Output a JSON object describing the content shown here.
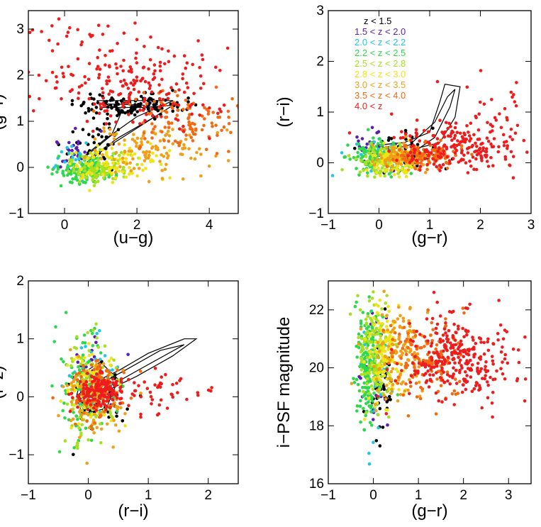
{
  "redshift_bins": [
    {
      "label": "z < 1.5",
      "color": "#000000"
    },
    {
      "label": "1.5 < z < 2.0",
      "color": "#5a1fb0"
    },
    {
      "label": "2.0 < z < 2.2",
      "color": "#1fc6e6"
    },
    {
      "label": "2.2 < z < 2.5",
      "color": "#2fd84a"
    },
    {
      "label": "2.5 < z < 2.8",
      "color": "#a8e020"
    },
    {
      "label": "2.8 < z < 3.0",
      "color": "#f0e418"
    },
    {
      "label": "3.0 < z < 3.5",
      "color": "#f0a018"
    },
    {
      "label": "3.5 < z < 4.0",
      "color": "#f26a12"
    },
    {
      "label": "4.0 < z",
      "color": "#ee1c1c"
    }
  ],
  "chart_data": [
    {
      "type": "scatter",
      "xlabel": "(u−g)",
      "ylabel": "(g−r)",
      "xlim": [
        -1,
        4.8
      ],
      "ylim": [
        -1,
        3.4
      ],
      "xticks": [
        0,
        2,
        4
      ],
      "yticks": [
        -1,
        0,
        1,
        2,
        3
      ],
      "legend": "none",
      "contours": [
        [
          [
            0.5,
            0.05
          ],
          [
            1.2,
            0.45
          ],
          [
            2.2,
            0.95
          ],
          [
            3.0,
            1.35
          ],
          [
            2.2,
            1.3
          ],
          [
            1.0,
            1.3
          ],
          [
            0.9,
            1.45
          ],
          [
            2.0,
            1.45
          ],
          [
            3.0,
            1.45
          ],
          [
            2.0,
            1.1
          ],
          [
            1.1,
            0.6
          ],
          [
            0.4,
            0.15
          ]
        ],
        [
          [
            0.7,
            0.2
          ],
          [
            1.5,
            0.65
          ],
          [
            2.5,
            1.1
          ],
          [
            2.2,
            1.35
          ],
          [
            1.1,
            1.38
          ],
          [
            1.6,
            1.25
          ],
          [
            1.3,
            0.7
          ],
          [
            0.6,
            0.25
          ]
        ]
      ],
      "series": [
        {
          "bin": 0,
          "clusters": [
            {
              "cx": 1.8,
              "cy": 1.35,
              "sx": 0.7,
              "sy": 0.12,
              "n": 120
            },
            {
              "cx": 0.8,
              "cy": 0.8,
              "sx": 0.35,
              "sy": 0.35,
              "n": 40
            }
          ]
        },
        {
          "bin": 1,
          "clusters": [
            {
              "cx": 0.2,
              "cy": 0.3,
              "sx": 0.3,
              "sy": 0.2,
              "n": 30
            }
          ]
        },
        {
          "bin": 2,
          "clusters": [
            {
              "cx": 0.3,
              "cy": 0.1,
              "sx": 0.3,
              "sy": 0.2,
              "n": 30
            }
          ]
        },
        {
          "bin": 3,
          "clusters": [
            {
              "cx": 0.6,
              "cy": -0.05,
              "sx": 0.4,
              "sy": 0.15,
              "n": 120
            }
          ]
        },
        {
          "bin": 4,
          "clusters": [
            {
              "cx": 0.9,
              "cy": 0.0,
              "sx": 0.45,
              "sy": 0.15,
              "n": 110
            }
          ]
        },
        {
          "bin": 5,
          "clusters": [
            {
              "cx": 1.4,
              "cy": 0.1,
              "sx": 0.6,
              "sy": 0.2,
              "n": 90
            }
          ]
        },
        {
          "bin": 6,
          "clusters": [
            {
              "cx": 2.3,
              "cy": 0.4,
              "sx": 0.9,
              "sy": 0.3,
              "n": 110
            }
          ]
        },
        {
          "bin": 7,
          "clusters": [
            {
              "cx": 3.3,
              "cy": 1.0,
              "sx": 0.9,
              "sy": 0.3,
              "n": 110
            }
          ]
        },
        {
          "bin": 8,
          "clusters": [
            {
              "cx": 2.0,
              "cy": 1.7,
              "sx": 1.3,
              "sy": 0.45,
              "n": 200
            },
            {
              "cx": 0.2,
              "cy": 2.9,
              "sx": 0.9,
              "sy": 0.35,
              "n": 35
            }
          ]
        }
      ]
    },
    {
      "type": "scatter",
      "xlabel": "(g−r)",
      "ylabel": "(r−i)",
      "xlim": [
        -1,
        3
      ],
      "ylim": [
        -1,
        3
      ],
      "xticks": [
        -1,
        0,
        1,
        2,
        3
      ],
      "yticks": [
        -1,
        0,
        1,
        2,
        3
      ],
      "legend": "top-left",
      "contours": [
        [
          [
            -0.2,
            0.2
          ],
          [
            0.3,
            0.1
          ],
          [
            0.8,
            0.3
          ],
          [
            1.2,
            0.4
          ],
          [
            1.5,
            0.9
          ],
          [
            1.6,
            1.5
          ],
          [
            1.3,
            1.55
          ],
          [
            1.2,
            1.2
          ],
          [
            1.0,
            0.6
          ],
          [
            0.5,
            0.4
          ],
          [
            0.0,
            0.35
          ],
          [
            -0.2,
            0.25
          ]
        ],
        [
          [
            0.1,
            0.2
          ],
          [
            0.6,
            0.15
          ],
          [
            1.1,
            0.5
          ],
          [
            1.4,
            1.1
          ],
          [
            1.5,
            1.45
          ],
          [
            1.35,
            1.3
          ],
          [
            1.1,
            0.8
          ],
          [
            0.6,
            0.35
          ],
          [
            0.2,
            0.25
          ]
        ]
      ],
      "series": [
        {
          "bin": 0,
          "clusters": [
            {
              "cx": 0.4,
              "cy": 0.2,
              "sx": 0.4,
              "sy": 0.2,
              "n": 60
            }
          ]
        },
        {
          "bin": 1,
          "clusters": [
            {
              "cx": -0.1,
              "cy": 0.25,
              "sx": 0.25,
              "sy": 0.15,
              "n": 30
            }
          ]
        },
        {
          "bin": 2,
          "clusters": [
            {
              "cx": -0.1,
              "cy": 0.15,
              "sx": 0.25,
              "sy": 0.15,
              "n": 30
            }
          ]
        },
        {
          "bin": 3,
          "clusters": [
            {
              "cx": -0.1,
              "cy": 0.1,
              "sx": 0.25,
              "sy": 0.15,
              "n": 120
            }
          ]
        },
        {
          "bin": 4,
          "clusters": [
            {
              "cx": 0.1,
              "cy": 0.05,
              "sx": 0.25,
              "sy": 0.15,
              "n": 100
            }
          ]
        },
        {
          "bin": 5,
          "clusters": [
            {
              "cx": 0.3,
              "cy": 0.05,
              "sx": 0.25,
              "sy": 0.15,
              "n": 90
            }
          ]
        },
        {
          "bin": 6,
          "clusters": [
            {
              "cx": 0.5,
              "cy": 0.1,
              "sx": 0.3,
              "sy": 0.12,
              "n": 100
            }
          ]
        },
        {
          "bin": 7,
          "clusters": [
            {
              "cx": 0.9,
              "cy": 0.15,
              "sx": 0.35,
              "sy": 0.12,
              "n": 110
            }
          ]
        },
        {
          "bin": 8,
          "clusters": [
            {
              "cx": 1.5,
              "cy": 0.3,
              "sx": 0.6,
              "sy": 0.25,
              "n": 200
            },
            {
              "cx": 2.3,
              "cy": 0.9,
              "sx": 0.4,
              "sy": 0.5,
              "n": 35
            }
          ]
        }
      ]
    },
    {
      "type": "scatter",
      "xlabel": "(r−i)",
      "ylabel": "(i−z)",
      "xlim": [
        -1,
        2.5
      ],
      "ylim": [
        -1.5,
        2
      ],
      "xticks": [
        -1,
        0,
        1,
        2
      ],
      "yticks": [
        -1,
        0,
        1,
        2
      ],
      "legend": "none",
      "contours": [
        [
          [
            -0.1,
            0.0
          ],
          [
            0.3,
            0.1
          ],
          [
            0.8,
            0.35
          ],
          [
            1.4,
            0.7
          ],
          [
            1.8,
            1.0
          ],
          [
            1.6,
            1.0
          ],
          [
            1.0,
            0.75
          ],
          [
            0.5,
            0.45
          ],
          [
            0.0,
            0.2
          ],
          [
            -0.15,
            0.05
          ]
        ],
        [
          [
            0.05,
            0.05
          ],
          [
            0.3,
            0.15
          ],
          [
            0.9,
            0.5
          ],
          [
            1.6,
            0.9
          ],
          [
            1.2,
            0.8
          ],
          [
            0.6,
            0.45
          ],
          [
            0.15,
            0.2
          ]
        ],
        [
          [
            -0.1,
            -0.3
          ],
          [
            0.3,
            -0.2
          ],
          [
            0.5,
            0.3
          ],
          [
            0.2,
            0.6
          ],
          [
            -0.1,
            0.4
          ],
          [
            -0.2,
            0.0
          ]
        ]
      ],
      "series": [
        {
          "bin": 0,
          "clusters": [
            {
              "cx": 0.2,
              "cy": 0.05,
              "sx": 0.3,
              "sy": 0.3,
              "n": 50
            }
          ]
        },
        {
          "bin": 1,
          "clusters": [
            {
              "cx": 0.05,
              "cy": 0.4,
              "sx": 0.2,
              "sy": 0.3,
              "n": 30
            }
          ]
        },
        {
          "bin": 2,
          "clusters": [
            {
              "cx": 0.05,
              "cy": 0.4,
              "sx": 0.2,
              "sy": 0.3,
              "n": 30
            }
          ]
        },
        {
          "bin": 3,
          "clusters": [
            {
              "cx": -0.05,
              "cy": 0.2,
              "sx": 0.2,
              "sy": 0.45,
              "n": 100
            }
          ]
        },
        {
          "bin": 4,
          "clusters": [
            {
              "cx": 0.0,
              "cy": 0.1,
              "sx": 0.2,
              "sy": 0.45,
              "n": 100
            }
          ]
        },
        {
          "bin": 5,
          "clusters": [
            {
              "cx": 0.05,
              "cy": 0.2,
              "sx": 0.2,
              "sy": 0.35,
              "n": 80
            }
          ]
        },
        {
          "bin": 6,
          "clusters": [
            {
              "cx": 0.1,
              "cy": 0.0,
              "sx": 0.25,
              "sy": 0.35,
              "n": 100
            }
          ]
        },
        {
          "bin": 7,
          "clusters": [
            {
              "cx": 0.15,
              "cy": 0.1,
              "sx": 0.25,
              "sy": 0.3,
              "n": 100
            }
          ]
        },
        {
          "bin": 8,
          "clusters": [
            {
              "cx": 0.2,
              "cy": 0.1,
              "sx": 0.2,
              "sy": 0.15,
              "n": 160
            },
            {
              "cx": 1.3,
              "cy": 0.1,
              "sx": 0.35,
              "sy": 0.2,
              "n": 45
            }
          ]
        }
      ]
    },
    {
      "type": "scatter",
      "xlabel": "(g−r)",
      "ylabel": "i−PSF magnitude",
      "xlim": [
        -1,
        3.5
      ],
      "ylim": [
        16,
        23
      ],
      "xticks": [
        -1,
        0,
        1,
        2,
        3
      ],
      "yticks": [
        16,
        18,
        20,
        22
      ],
      "legend": "none",
      "contours": [],
      "series": [
        {
          "bin": 0,
          "clusters": [
            {
              "cx": 0.2,
              "cy": 19.4,
              "sx": 0.15,
              "sy": 0.9,
              "n": 45
            }
          ]
        },
        {
          "bin": 1,
          "clusters": [
            {
              "cx": 0.0,
              "cy": 19.5,
              "sx": 0.15,
              "sy": 1.2,
              "n": 25
            }
          ]
        },
        {
          "bin": 2,
          "clusters": [
            {
              "cx": 0.05,
              "cy": 19.5,
              "sx": 0.15,
              "sy": 1.2,
              "n": 25
            }
          ]
        },
        {
          "bin": 3,
          "clusters": [
            {
              "cx": -0.1,
              "cy": 20.2,
              "sx": 0.18,
              "sy": 1.0,
              "n": 180
            }
          ]
        },
        {
          "bin": 4,
          "clusters": [
            {
              "cx": 0.05,
              "cy": 20.4,
              "sx": 0.18,
              "sy": 0.9,
              "n": 150
            }
          ]
        },
        {
          "bin": 5,
          "clusters": [
            {
              "cx": 0.25,
              "cy": 20.5,
              "sx": 0.2,
              "sy": 0.8,
              "n": 120
            }
          ]
        },
        {
          "bin": 6,
          "clusters": [
            {
              "cx": 0.55,
              "cy": 20.5,
              "sx": 0.3,
              "sy": 0.8,
              "n": 130
            }
          ]
        },
        {
          "bin": 7,
          "clusters": [
            {
              "cx": 1.1,
              "cy": 20.4,
              "sx": 0.45,
              "sy": 0.8,
              "n": 130
            }
          ]
        },
        {
          "bin": 8,
          "clusters": [
            {
              "cx": 1.9,
              "cy": 20.3,
              "sx": 0.6,
              "sy": 0.75,
              "n": 300
            }
          ]
        }
      ]
    }
  ]
}
